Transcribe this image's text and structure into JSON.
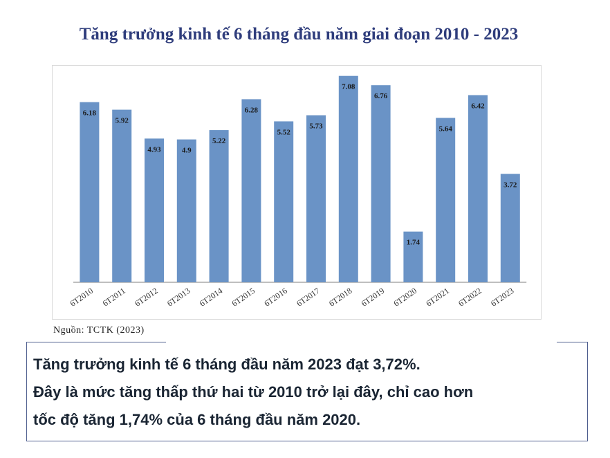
{
  "chart_data": {
    "type": "bar",
    "title": "Tăng trưởng kinh tế 6 tháng đầu năm giai đoạn 2010 - 2023",
    "categories": [
      "6T2010",
      "6T2011",
      "6T2012",
      "6T2013",
      "6T2014",
      "6T2015",
      "6T2016",
      "6T2017",
      "6T2018",
      "6T2019",
      "6T2020",
      "6T2021",
      "6T2022",
      "6T2023"
    ],
    "values": [
      6.18,
      5.92,
      4.93,
      4.9,
      5.22,
      6.28,
      5.52,
      5.73,
      7.08,
      6.76,
      1.74,
      5.64,
      6.42,
      3.72
    ],
    "value_labels": [
      "6.18",
      "5.92",
      "4.93",
      "4.9",
      "5.22",
      "6.28",
      "5.52",
      "5.73",
      "7.08",
      "6.76",
      "1.74",
      "5.64",
      "6.42",
      "3.72"
    ],
    "xlabel": "",
    "ylabel": "",
    "ylim": [
      0,
      7.5
    ],
    "grid": false,
    "bar_color": "#6a93c6"
  },
  "source": "Nguồn: TCTK (2023)",
  "note": {
    "lines": [
      "Tăng trưởng kinh tế 6 tháng đầu năm 2023 đạt 3,72%.",
      "Đây là mức tăng thấp thứ hai từ 2010 trở lại đây, chỉ cao hơn",
      "tốc độ tăng 1,74% của 6 tháng đầu năm 2020."
    ]
  }
}
